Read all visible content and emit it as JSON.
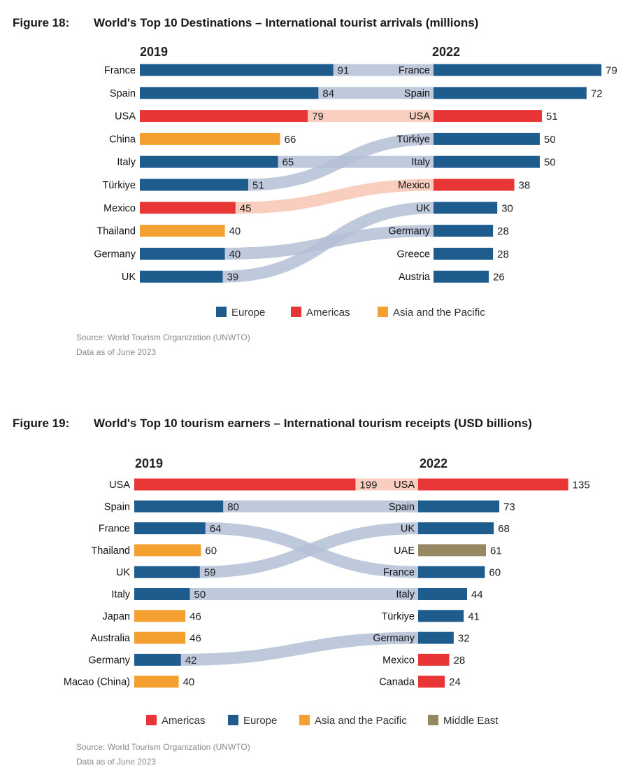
{
  "chart_data": [
    {
      "type": "slope-bar",
      "figure_label": "Figure 18:",
      "title": "World's Top 10 Destinations – International tourist arrivals (millions)",
      "left_year": "2019",
      "right_year": "2022",
      "left": [
        {
          "name": "France",
          "value": 91,
          "region": "Europe"
        },
        {
          "name": "Spain",
          "value": 84,
          "region": "Europe"
        },
        {
          "name": "USA",
          "value": 79,
          "region": "Americas"
        },
        {
          "name": "China",
          "value": 66,
          "region": "Asia and the Pacific"
        },
        {
          "name": "Italy",
          "value": 65,
          "region": "Europe"
        },
        {
          "name": "Türkiye",
          "value": 51,
          "region": "Europe"
        },
        {
          "name": "Mexico",
          "value": 45,
          "region": "Americas"
        },
        {
          "name": "Thailand",
          "value": 40,
          "region": "Asia and the Pacific"
        },
        {
          "name": "Germany",
          "value": 40,
          "region": "Europe"
        },
        {
          "name": "UK",
          "value": 39,
          "region": "Europe"
        }
      ],
      "right": [
        {
          "name": "France",
          "value": 79,
          "region": "Europe"
        },
        {
          "name": "Spain",
          "value": 72,
          "region": "Europe"
        },
        {
          "name": "USA",
          "value": 51,
          "region": "Americas"
        },
        {
          "name": "Türkiye",
          "value": 50,
          "region": "Europe"
        },
        {
          "name": "Italy",
          "value": 50,
          "region": "Europe"
        },
        {
          "name": "Mexico",
          "value": 38,
          "region": "Americas"
        },
        {
          "name": "UK",
          "value": 30,
          "region": "Europe"
        },
        {
          "name": "Germany",
          "value": 28,
          "region": "Europe"
        },
        {
          "name": "Greece",
          "value": 28,
          "region": "Europe"
        },
        {
          "name": "Austria",
          "value": 26,
          "region": "Europe"
        }
      ],
      "legend": [
        "Europe",
        "Americas",
        "Asia and the Pacific"
      ],
      "source": "Source: World Tourism Organization (UNWTO)",
      "data_note": "Data as of June 2023"
    },
    {
      "type": "slope-bar",
      "figure_label": "Figure 19:",
      "title": "World's Top 10 tourism earners – International tourism receipts (USD billions)",
      "left_year": "2019",
      "right_year": "2022",
      "left": [
        {
          "name": "USA",
          "value": 199,
          "region": "Americas"
        },
        {
          "name": "Spain",
          "value": 80,
          "region": "Europe"
        },
        {
          "name": "France",
          "value": 64,
          "region": "Europe"
        },
        {
          "name": "Thailand",
          "value": 60,
          "region": "Asia and the Pacific"
        },
        {
          "name": "UK",
          "value": 59,
          "region": "Europe"
        },
        {
          "name": "Italy",
          "value": 50,
          "region": "Europe"
        },
        {
          "name": "Japan",
          "value": 46,
          "region": "Asia and the Pacific"
        },
        {
          "name": "Australia",
          "value": 46,
          "region": "Asia and the Pacific"
        },
        {
          "name": "Germany",
          "value": 42,
          "region": "Europe"
        },
        {
          "name": "Macao (China)",
          "value": 40,
          "region": "Asia and the Pacific"
        }
      ],
      "right": [
        {
          "name": "USA",
          "value": 135,
          "region": "Americas"
        },
        {
          "name": "Spain",
          "value": 73,
          "region": "Europe"
        },
        {
          "name": "UK",
          "value": 68,
          "region": "Europe"
        },
        {
          "name": "UAE",
          "value": 61,
          "region": "Middle East"
        },
        {
          "name": "France",
          "value": 60,
          "region": "Europe"
        },
        {
          "name": "Italy",
          "value": 44,
          "region": "Europe"
        },
        {
          "name": "Türkiye",
          "value": 41,
          "region": "Europe"
        },
        {
          "name": "Germany",
          "value": 32,
          "region": "Europe"
        },
        {
          "name": "Mexico",
          "value": 28,
          "region": "Americas"
        },
        {
          "name": "Canada",
          "value": 24,
          "region": "Americas"
        }
      ],
      "legend": [
        "Americas",
        "Europe",
        "Asia and the Pacific",
        "Middle East"
      ],
      "source": "Source: World Tourism Organization (UNWTO)",
      "data_note": "Data as of June 2023"
    }
  ],
  "colors": {
    "Europe": "#1f5c8e",
    "Americas": "#e83535",
    "Asia and the Pacific": "#f3a030",
    "Middle East": "#958863",
    "connector_europe": "#b4bfd6",
    "connector_americas": "#f8c5b3"
  }
}
